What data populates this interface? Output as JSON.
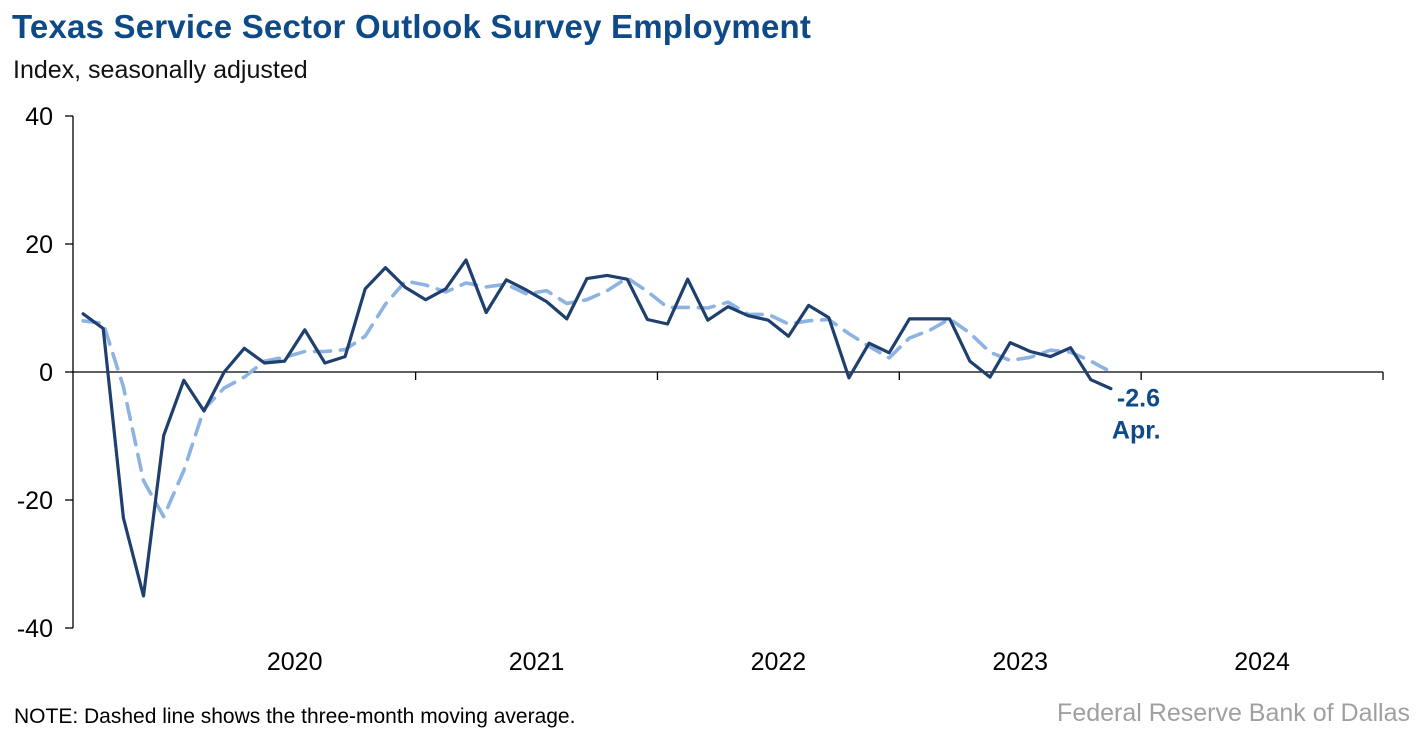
{
  "title": "Texas Service Sector Outlook Survey Employment",
  "subtitle": "Index, seasonally adjusted",
  "note": "NOTE: Dashed line shows the three-month moving average.",
  "source": "Federal Reserve Bank of Dallas",
  "colors": {
    "title": "#0e4a87",
    "series_main": "#1f3f6e",
    "series_avg": "#8db3e2",
    "annotation": "#0e4a87"
  },
  "chart_data": {
    "type": "line",
    "ylabel": "Index, seasonally adjusted",
    "ylim": [
      -40,
      40
    ],
    "y_ticks": [
      "40",
      "20",
      "0",
      "-20",
      "-40"
    ],
    "year_labels": [
      "2020",
      "2021",
      "2022",
      "2023",
      "2024"
    ],
    "x_start": "2019-08",
    "x_end": "2024-12",
    "grid": false,
    "series": [
      {
        "values": [
          9.1,
          6.8,
          -22.8,
          -35.0,
          -9.9,
          -1.3,
          -6.1,
          0.0,
          3.7,
          1.4,
          1.7,
          6.6,
          1.4,
          2.4,
          13.0,
          16.3,
          13.2,
          11.3,
          13.0,
          17.5,
          9.3,
          14.4,
          12.8,
          11.0,
          8.3,
          14.6,
          15.1,
          14.5,
          8.2,
          7.5,
          14.5,
          8.1,
          10.2,
          8.8,
          8.1,
          5.6,
          10.4,
          8.5,
          -0.9,
          4.5,
          3.0,
          8.3,
          8.3,
          8.3,
          1.7,
          -0.8,
          4.6,
          3.2,
          2.4,
          3.8,
          -1.2,
          -2.6
        ]
      },
      {
        "values": [
          8.0,
          7.6,
          -2.3,
          -17.0,
          -22.6,
          -15.4,
          -5.8,
          -2.5,
          -0.8,
          1.7,
          2.3,
          3.2,
          3.2,
          3.5,
          5.6,
          10.6,
          14.2,
          13.6,
          12.5,
          13.9,
          13.3,
          13.7,
          12.2,
          12.7,
          10.7,
          11.3,
          12.7,
          14.7,
          12.6,
          10.1,
          10.1,
          10.0,
          10.9,
          9.0,
          9.0,
          7.5,
          8.0,
          8.2,
          6.0,
          4.0,
          2.2,
          5.3,
          6.5,
          8.3,
          6.1,
          3.1,
          1.8,
          2.3,
          3.4,
          3.1,
          1.7,
          0.0
        ]
      }
    ],
    "annotations": [
      {
        "text": "-2.6"
      },
      {
        "text": "Apr."
      }
    ]
  }
}
